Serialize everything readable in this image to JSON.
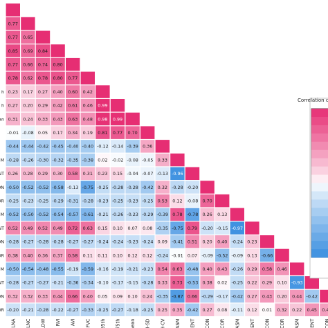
{
  "chart_data": {
    "type": "heatmap",
    "title": "",
    "legend_title": "Correlation coefficient",
    "x_labels": [
      "LNA",
      "LNC",
      "LDW",
      "RVI",
      "AVI",
      "FVC",
      "HP95th",
      "HP75th",
      "H-mean",
      "H-SD",
      "H-CV",
      "HS-ASM",
      "HS-ENT",
      "HS-CON",
      "HS-COR",
      "HV-ASM",
      "HV-ENT",
      "HV-CON",
      "HV-COR",
      "SV-ASM",
      "SV-ENT",
      "SV-CON"
    ],
    "y_labels": [
      "",
      "",
      "",
      "",
      "",
      "",
      "h",
      "h",
      "an",
      "",
      "",
      "SM",
      "NT",
      "ON",
      "OR",
      "SM",
      "NT",
      "ON",
      "OR",
      "SM",
      "NT",
      "ON",
      "OR"
    ],
    "rows": [
      [],
      [
        0.77
      ],
      [
        0.77,
        0.65
      ],
      [
        0.85,
        0.69,
        0.84
      ],
      [
        0.77,
        0.66,
        0.74,
        0.8
      ],
      [
        0.78,
        0.62,
        0.78,
        0.8,
        0.77
      ],
      [
        0.23,
        0.17,
        0.27,
        0.4,
        0.6,
        0.42
      ],
      [
        0.27,
        0.2,
        0.29,
        0.42,
        0.61,
        0.46,
        0.99
      ],
      [
        0.31,
        0.24,
        0.33,
        0.43,
        0.63,
        0.48,
        0.98,
        0.99
      ],
      [
        -0.01,
        -0.08,
        0.05,
        0.17,
        0.34,
        0.19,
        0.81,
        0.77,
        0.7
      ],
      [
        -0.44,
        -0.44,
        -0.42,
        -0.45,
        -0.4,
        -0.4,
        -0.12,
        -0.14,
        -0.39,
        0.36
      ],
      [
        -0.28,
        -0.26,
        -0.3,
        -0.32,
        -0.35,
        -0.38,
        0.02,
        -0.02,
        -0.08,
        -0.05,
        0.33
      ],
      [
        0.26,
        0.28,
        0.29,
        0.3,
        0.58,
        0.31,
        0.23,
        0.15,
        -0.04,
        -0.07,
        -0.13,
        -0.96
      ],
      [
        -0.5,
        -0.52,
        -0.52,
        -0.58,
        -0.13,
        -0.75,
        -0.25,
        -0.28,
        -0.28,
        -0.42,
        0.32,
        -0.28,
        -0.2
      ],
      [
        -0.25,
        -0.23,
        -0.25,
        -0.29,
        -0.31,
        -0.28,
        -0.23,
        -0.25,
        -0.23,
        -0.25,
        0.53,
        0.12,
        -0.08,
        0.7
      ],
      [
        -0.52,
        -0.5,
        -0.52,
        -0.54,
        -0.57,
        -0.61,
        -0.21,
        -0.26,
        -0.23,
        -0.29,
        -0.39,
        0.78,
        -0.78,
        0.26,
        0.13
      ],
      [
        0.52,
        0.49,
        0.52,
        0.49,
        0.72,
        0.63,
        0.15,
        0.1,
        0.07,
        0.08,
        -0.35,
        -0.75,
        0.79,
        -0.2,
        -0.15,
        -0.97
      ],
      [
        -0.28,
        -0.27,
        -0.28,
        -0.28,
        -0.27,
        -0.27,
        -0.24,
        -0.24,
        -0.23,
        -0.24,
        0.09,
        -0.41,
        0.51,
        0.2,
        0.4,
        -0.24,
        0.23
      ],
      [
        0.38,
        0.4,
        0.36,
        0.37,
        0.58,
        0.11,
        0.11,
        0.1,
        0.12,
        0.12,
        -0.24,
        -0.01,
        0.07,
        -0.09,
        -0.52,
        -0.09,
        0.13,
        -0.66
      ],
      [
        -0.5,
        -0.54,
        -0.48,
        -0.55,
        -0.19,
        -0.59,
        -0.16,
        -0.19,
        -0.21,
        -0.23,
        0.54,
        0.63,
        -0.48,
        0.4,
        0.43,
        -0.26,
        0.29,
        0.58,
        0.46
      ],
      [
        -0.28,
        -0.27,
        -0.27,
        -0.21,
        -0.36,
        -0.34,
        -0.1,
        -0.17,
        -0.15,
        -0.28,
        0.33,
        0.73,
        -0.53,
        0.38,
        0.02,
        -0.25,
        0.22,
        0.29,
        0.1,
        -0.93
      ],
      [
        0.32,
        0.32,
        0.33,
        0.44,
        0.66,
        0.4,
        0.05,
        0.09,
        0.1,
        0.24,
        -0.35,
        -0.87,
        0.66,
        -0.29,
        -0.17,
        -0.42,
        0.27,
        0.43,
        0.2,
        0.44,
        -0.42
      ],
      [
        -0.2,
        -0.21,
        -0.28,
        -0.22,
        -0.27,
        -0.33,
        -0.25,
        -0.27,
        -0.18,
        -0.25,
        0.25,
        0.35,
        -0.42,
        0.27,
        0.08,
        -0.11,
        0.12,
        0.01,
        0.32,
        0.22,
        0.45,
        0.4
      ]
    ],
    "colorscale": {
      "low": "#3b8fe0",
      "mid": "#ffffff",
      "high": "#e62e73"
    },
    "range": [
      -1,
      1
    ],
    "legend_placement": "right"
  }
}
